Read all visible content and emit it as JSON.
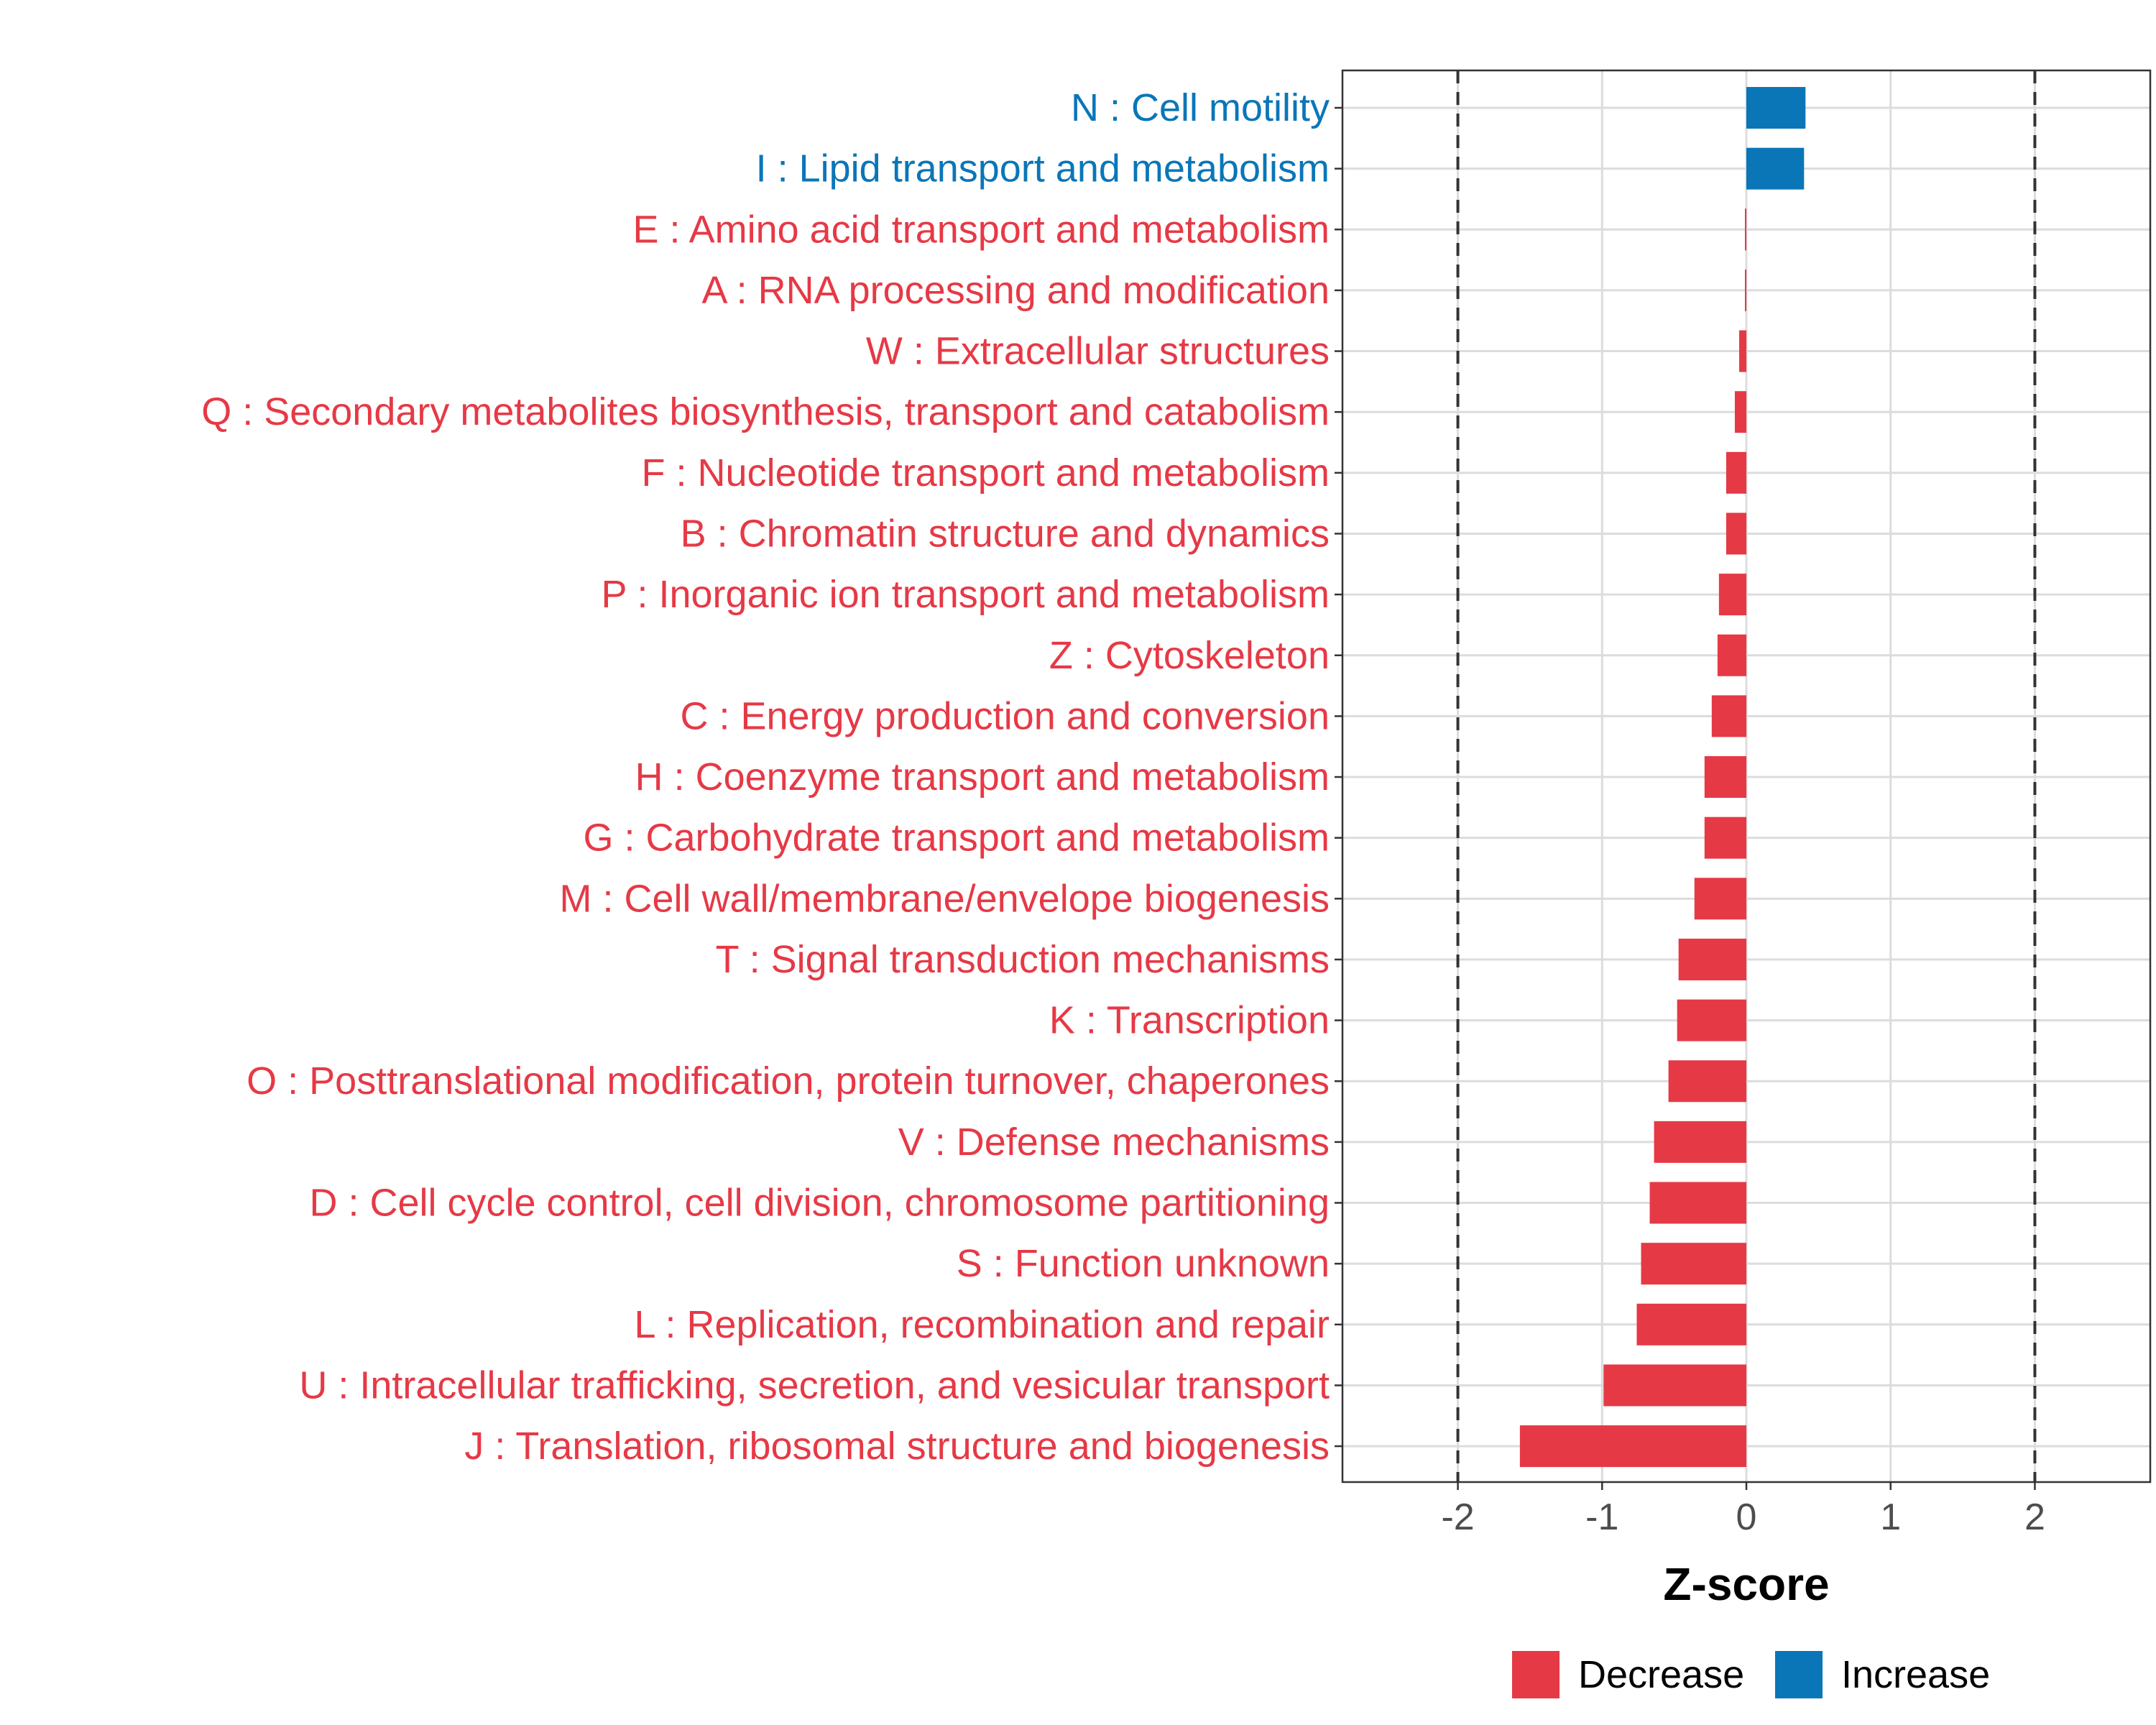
{
  "chart_data": {
    "type": "bar",
    "orientation": "horizontal",
    "xlabel": "Z-score",
    "xlim": [
      -2.8,
      2.8
    ],
    "xticks": [
      -2,
      -1,
      0,
      1,
      2
    ],
    "xtick_labels": [
      "-2",
      "-1",
      "0",
      "1",
      "2"
    ],
    "reference_lines": [
      -2,
      2
    ],
    "grid": true,
    "legend_position": "bottom",
    "colors": {
      "Decrease": "#e63946",
      "Increase": "#0a76b8"
    },
    "legend": [
      {
        "name": "Decrease",
        "color": "#e63946"
      },
      {
        "name": "Increase",
        "color": "#0a76b8"
      }
    ],
    "categories": [
      {
        "label": "N : Cell motility",
        "value": 0.41,
        "direction": "Increase"
      },
      {
        "label": "I : Lipid transport and metabolism",
        "value": 0.4,
        "direction": "Increase"
      },
      {
        "label": "E : Amino acid transport and metabolism",
        "value": -0.01,
        "direction": "Decrease"
      },
      {
        "label": "A : RNA processing and modification",
        "value": -0.01,
        "direction": "Decrease"
      },
      {
        "label": "W : Extracellular structures",
        "value": -0.05,
        "direction": "Decrease"
      },
      {
        "label": "Q : Secondary metabolites biosynthesis, transport and catabolism",
        "value": -0.08,
        "direction": "Decrease"
      },
      {
        "label": "F : Nucleotide transport and metabolism",
        "value": -0.14,
        "direction": "Decrease"
      },
      {
        "label": "B : Chromatin structure and dynamics",
        "value": -0.14,
        "direction": "Decrease"
      },
      {
        "label": "P : Inorganic ion transport and metabolism",
        "value": -0.19,
        "direction": "Decrease"
      },
      {
        "label": "Z : Cytoskeleton",
        "value": -0.2,
        "direction": "Decrease"
      },
      {
        "label": "C : Energy production and conversion",
        "value": -0.24,
        "direction": "Decrease"
      },
      {
        "label": "H : Coenzyme transport and metabolism",
        "value": -0.29,
        "direction": "Decrease"
      },
      {
        "label": "G : Carbohydrate transport and metabolism",
        "value": -0.29,
        "direction": "Decrease"
      },
      {
        "label": "M : Cell wall/membrane/envelope biogenesis",
        "value": -0.36,
        "direction": "Decrease"
      },
      {
        "label": "T : Signal transduction mechanisms",
        "value": -0.47,
        "direction": "Decrease"
      },
      {
        "label": "K : Transcription",
        "value": -0.48,
        "direction": "Decrease"
      },
      {
        "label": "O : Posttranslational modification, protein turnover, chaperones",
        "value": -0.54,
        "direction": "Decrease"
      },
      {
        "label": "V : Defense mechanisms",
        "value": -0.64,
        "direction": "Decrease"
      },
      {
        "label": "D : Cell cycle control, cell division, chromosome partitioning",
        "value": -0.67,
        "direction": "Decrease"
      },
      {
        "label": "S : Function unknown",
        "value": -0.73,
        "direction": "Decrease"
      },
      {
        "label": "L : Replication, recombination and repair",
        "value": -0.76,
        "direction": "Decrease"
      },
      {
        "label": "U : Intracellular trafficking, secretion, and vesicular transport",
        "value": -0.99,
        "direction": "Decrease"
      },
      {
        "label": "J : Translation, ribosomal structure and biogenesis",
        "value": -1.57,
        "direction": "Decrease"
      }
    ]
  }
}
